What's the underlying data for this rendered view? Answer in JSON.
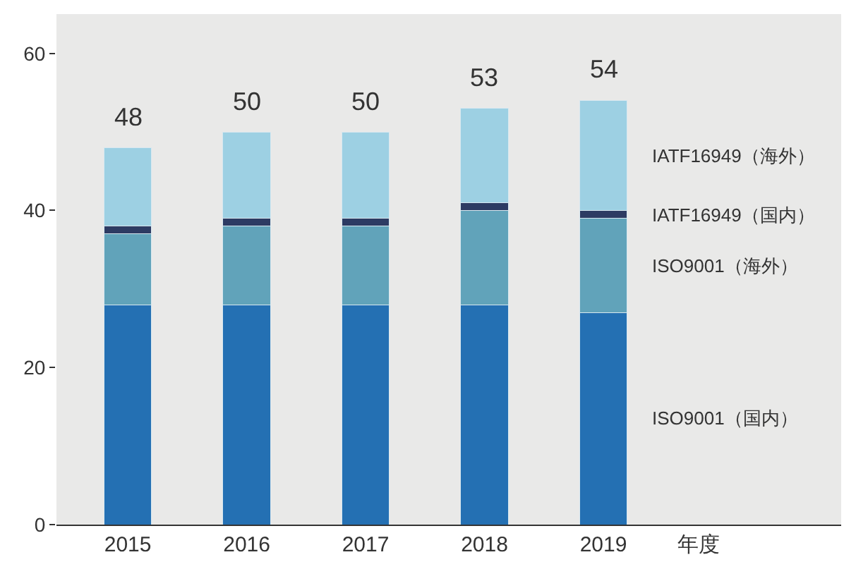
{
  "chart_data": {
    "type": "bar",
    "stacked": true,
    "xlabel": "年度",
    "categories": [
      "2015",
      "2016",
      "2017",
      "2018",
      "2019"
    ],
    "series": [
      {
        "name": "ISO9001（国内）",
        "color": "#2470b3",
        "values": [
          28,
          28,
          28,
          28,
          27
        ]
      },
      {
        "name": "ISO9001（海外）",
        "color": "#61a3ba",
        "values": [
          9,
          10,
          10,
          12,
          12
        ]
      },
      {
        "name": "IATF16949（国内）",
        "color": "#2d3b63",
        "values": [
          1,
          1,
          1,
          1,
          1
        ]
      },
      {
        "name": "IATF16949（海外）",
        "color": "#9dd0e3",
        "values": [
          10,
          11,
          11,
          12,
          14
        ]
      }
    ],
    "totals": [
      "48",
      "50",
      "50",
      "53",
      "54"
    ],
    "ylim": [
      0,
      65
    ],
    "yticks": [
      0,
      20,
      40,
      60
    ],
    "grid": false
  }
}
